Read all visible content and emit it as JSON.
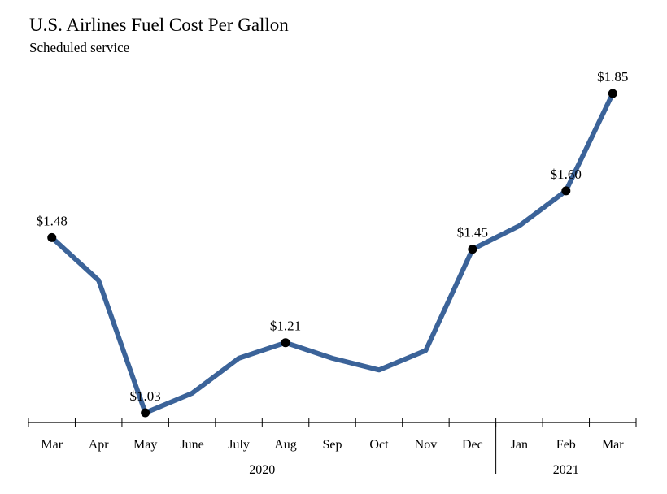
{
  "chart_data": {
    "type": "line",
    "title": "U.S. Airlines Fuel Cost Per Gallon",
    "subtitle": "Scheduled service",
    "categories": [
      "Mar",
      "Apr",
      "May",
      "June",
      "July",
      "Aug",
      "Sep",
      "Oct",
      "Nov",
      "Dec",
      "Jan",
      "Feb",
      "Mar"
    ],
    "year_groups": [
      {
        "label": "2020",
        "start": 0,
        "end": 9
      },
      {
        "label": "2021",
        "start": 10,
        "end": 12
      }
    ],
    "series": [
      {
        "values": [
          1.48,
          1.37,
          1.03,
          1.08,
          1.17,
          1.21,
          1.17,
          1.14,
          1.19,
          1.45,
          1.51,
          1.6,
          1.85
        ]
      }
    ],
    "data_labels": [
      {
        "index": 0,
        "text": "$1.48"
      },
      {
        "index": 2,
        "text": "$1.03"
      },
      {
        "index": 5,
        "text": "$1.21"
      },
      {
        "index": 9,
        "text": "$1.45"
      },
      {
        "index": 11,
        "text": "$1.60"
      },
      {
        "index": 12,
        "text": "$1.85"
      }
    ],
    "xlabel": "",
    "ylabel": "",
    "ylim": [
      1.03,
      1.85
    ],
    "grid": false,
    "legend": "none",
    "line_color": "#3b6399",
    "marker_color": "#000000"
  }
}
